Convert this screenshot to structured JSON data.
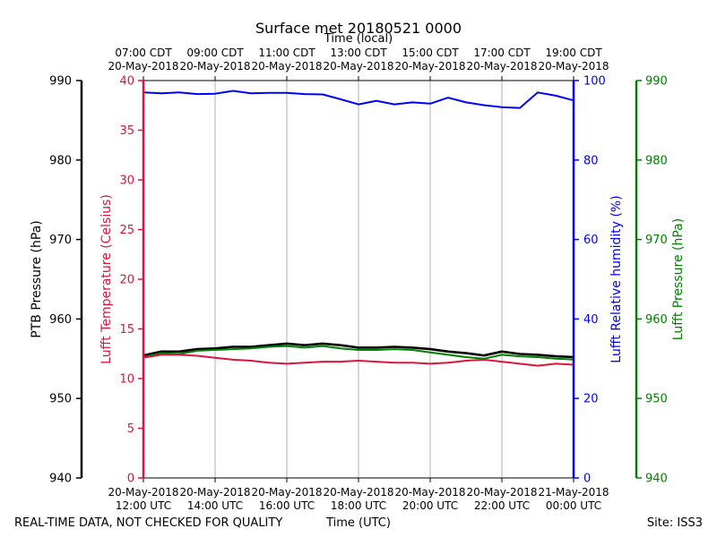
{
  "chart_data": {
    "type": "line",
    "title": "Surface met 20180521 0000",
    "top_axis_label": "Time (local)",
    "top_ticks": [
      {
        "line1": "07:00 CDT",
        "line2": "20-May-2018"
      },
      {
        "line1": "09:00 CDT",
        "line2": "20-May-2018"
      },
      {
        "line1": "11:00 CDT",
        "line2": "20-May-2018"
      },
      {
        "line1": "13:00 CDT",
        "line2": "20-May-2018"
      },
      {
        "line1": "15:00 CDT",
        "line2": "20-May-2018"
      },
      {
        "line1": "17:00 CDT",
        "line2": "20-May-2018"
      },
      {
        "line1": "19:00 CDT",
        "line2": "20-May-2018"
      }
    ],
    "bottom_ticks": [
      {
        "line1": "20-May-2018",
        "line2": "12:00 UTC"
      },
      {
        "line1": "20-May-2018",
        "line2": "14:00 UTC"
      },
      {
        "line1": "20-May-2018",
        "line2": "16:00 UTC"
      },
      {
        "line1": "20-May-2018",
        "line2": "18:00 UTC"
      },
      {
        "line1": "20-May-2018",
        "line2": "20:00 UTC"
      },
      {
        "line1": "20-May-2018",
        "line2": "22:00 UTC"
      },
      {
        "line1": "21-May-2018",
        "line2": "00:00 UTC"
      }
    ],
    "x_range_hours_utc": [
      12,
      24
    ],
    "xlabel": "Time (UTC)",
    "grid": "vertical",
    "axes": {
      "ptb_pressure": {
        "label": "PTB Pressure (hPa)",
        "range": [
          940,
          990
        ],
        "ticks": [
          "940",
          "950",
          "960",
          "970",
          "980",
          "990"
        ],
        "color": "#000000"
      },
      "temperature": {
        "label": "Lufft Temperature (Celsius)",
        "range": [
          0,
          40
        ],
        "ticks": [
          "0",
          "5",
          "10",
          "15",
          "20",
          "25",
          "30",
          "35",
          "40"
        ],
        "color": "#dc143c"
      },
      "humidity": {
        "label": "Lufft Relative humidity (%)",
        "range": [
          0,
          100
        ],
        "ticks": [
          "0",
          "20",
          "40",
          "60",
          "80",
          "100"
        ],
        "color": "#0000ff"
      },
      "lufft_pressure": {
        "label": "Lufft Pressure (hPa)",
        "range": [
          940,
          990
        ],
        "ticks": [
          "940",
          "950",
          "960",
          "970",
          "980",
          "990"
        ],
        "color": "#008000"
      }
    },
    "series": [
      {
        "name": "PTB Pressure",
        "axis": "ptb_pressure",
        "color": "#000000",
        "x": [
          12.0,
          12.5,
          13.0,
          13.5,
          14.0,
          14.5,
          15.0,
          15.5,
          16.0,
          16.5,
          17.0,
          17.5,
          18.0,
          18.5,
          19.0,
          19.5,
          20.0,
          20.5,
          21.0,
          21.5,
          22.0,
          22.5,
          23.0,
          23.5,
          24.0
        ],
        "values": [
          955.4,
          955.9,
          955.9,
          956.2,
          956.3,
          956.5,
          956.5,
          956.7,
          956.9,
          956.7,
          956.9,
          956.7,
          956.4,
          956.4,
          956.5,
          956.4,
          956.2,
          955.9,
          955.7,
          955.4,
          955.9,
          955.6,
          955.5,
          955.3,
          955.2
        ]
      },
      {
        "name": "Lufft Temperature",
        "axis": "temperature",
        "color": "#dc143c",
        "x": [
          12.0,
          12.5,
          13.0,
          13.5,
          14.0,
          14.5,
          15.0,
          15.5,
          16.0,
          16.5,
          17.0,
          17.5,
          18.0,
          18.5,
          19.0,
          19.5,
          20.0,
          20.5,
          21.0,
          21.5,
          22.0,
          22.5,
          23.0,
          23.5,
          24.0
        ],
        "values": [
          12.1,
          12.4,
          12.4,
          12.3,
          12.1,
          11.9,
          11.8,
          11.6,
          11.5,
          11.6,
          11.7,
          11.7,
          11.8,
          11.7,
          11.6,
          11.6,
          11.5,
          11.6,
          11.8,
          11.9,
          11.7,
          11.5,
          11.3,
          11.5,
          11.4
        ]
      },
      {
        "name": "Lufft Relative humidity",
        "axis": "humidity",
        "color": "#0000ff",
        "x": [
          12.0,
          12.5,
          13.0,
          13.5,
          14.0,
          14.5,
          15.0,
          15.5,
          16.0,
          16.5,
          17.0,
          17.5,
          18.0,
          18.5,
          19.0,
          19.5,
          20.0,
          20.5,
          21.0,
          21.5,
          22.0,
          22.5,
          23.0,
          23.5,
          24.0
        ],
        "values": [
          97.0,
          96.8,
          97.0,
          96.6,
          96.7,
          97.4,
          96.8,
          96.9,
          96.9,
          96.6,
          96.5,
          95.3,
          94.0,
          94.9,
          94.0,
          94.5,
          94.2,
          95.7,
          94.5,
          93.8,
          93.3,
          93.1,
          97.0,
          96.2,
          95.0
        ]
      },
      {
        "name": "Lufft Pressure",
        "axis": "lufft_pressure",
        "color": "#008000",
        "x": [
          12.0,
          12.5,
          13.0,
          13.5,
          14.0,
          14.5,
          15.0,
          15.5,
          16.0,
          16.5,
          17.0,
          17.5,
          18.0,
          18.5,
          19.0,
          19.5,
          20.0,
          20.5,
          21.0,
          21.5,
          22.0,
          22.5,
          23.0,
          23.5,
          24.0
        ],
        "values": [
          955.2,
          955.7,
          955.6,
          956.0,
          956.1,
          956.2,
          956.3,
          956.5,
          956.6,
          956.4,
          956.6,
          956.3,
          956.1,
          956.1,
          956.2,
          956.1,
          955.8,
          955.5,
          955.2,
          955.0,
          955.5,
          955.3,
          955.2,
          955.0,
          954.9
        ]
      }
    ]
  },
  "footer": {
    "left": "REAL-TIME DATA, NOT CHECKED FOR QUALITY",
    "center": "Time (UTC)",
    "right": "Site: ISS3"
  }
}
